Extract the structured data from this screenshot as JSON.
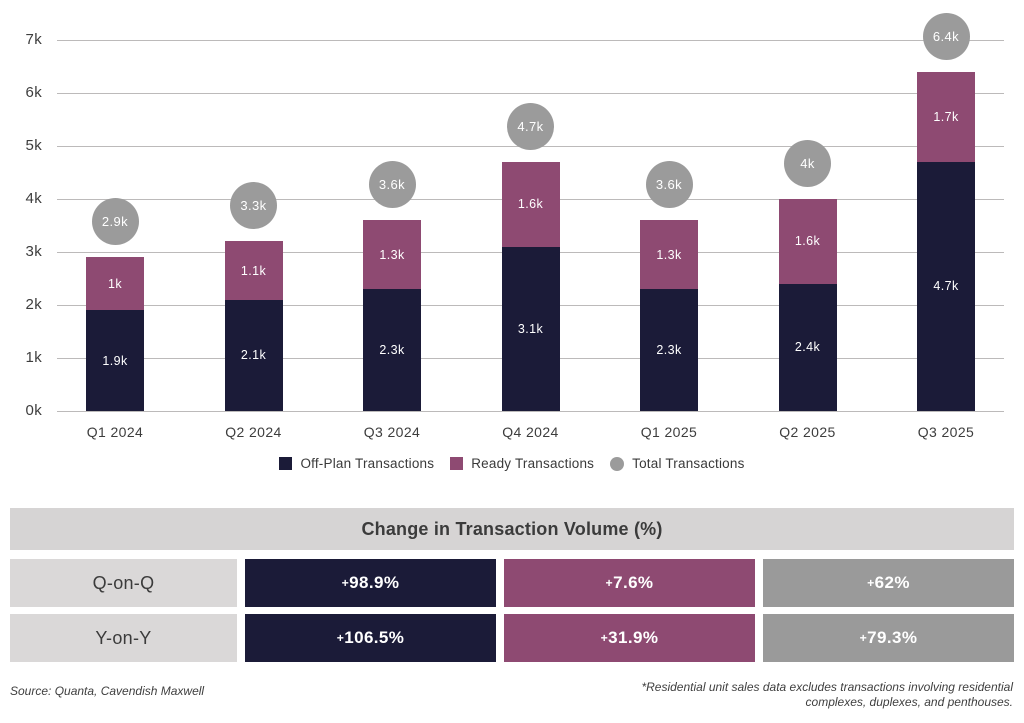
{
  "chart_data": {
    "type": "bar",
    "stacked": true,
    "title": "",
    "xlabel": "",
    "ylabel": "",
    "categories": [
      "Q1 2024",
      "Q2 2024",
      "Q3 2024",
      "Q4 2024",
      "Q1 2025",
      "Q2 2025",
      "Q3 2025"
    ],
    "series": [
      {
        "name": "Off-Plan Transactions",
        "color": "#1b1b38",
        "values": [
          1.9,
          2.1,
          2.3,
          3.1,
          2.3,
          2.4,
          4.7
        ],
        "labels": [
          "1.9k",
          "2.1k",
          "2.3k",
          "3.1k",
          "2.3k",
          "2.4k",
          "4.7k"
        ]
      },
      {
        "name": "Ready Transactions",
        "color": "#8e4a72",
        "values": [
          1.0,
          1.1,
          1.3,
          1.6,
          1.3,
          1.6,
          1.7
        ],
        "labels": [
          "1k",
          "1.1k",
          "1.3k",
          "1.6k",
          "1.3k",
          "1.6k",
          "1.7k"
        ]
      }
    ],
    "totals": {
      "name": "Total Transactions",
      "color": "#9b9b9b",
      "values": [
        2.9,
        3.3,
        3.6,
        4.7,
        3.6,
        4.0,
        6.4
      ],
      "labels": [
        "2.9k",
        "3.3k",
        "3.6k",
        "4.7k",
        "3.6k",
        "4k",
        "6.4k"
      ]
    },
    "y_axis": {
      "min": 0,
      "max": 7,
      "unit": "k",
      "ticks": [
        "0k",
        "1k",
        "2k",
        "3k",
        "4k",
        "5k",
        "6k",
        "7k"
      ]
    },
    "grid": true,
    "legend_position": "bottom"
  },
  "legend": [
    {
      "label": "Off-Plan Transactions",
      "marker": "square",
      "color": "#1b1b38"
    },
    {
      "label": "Ready Transactions",
      "marker": "square",
      "color": "#8e4a72"
    },
    {
      "label": "Total Transactions",
      "marker": "circle",
      "color": "#9b9b9b"
    }
  ],
  "table": {
    "title": "Change in Transaction Volume (%)",
    "rows": [
      {
        "label": "Q-on-Q",
        "cells": [
          {
            "value": "+98.9%",
            "color": "#1b1b38"
          },
          {
            "value": "+7.6%",
            "color": "#8e4a72"
          },
          {
            "value": "+62%",
            "color": "#9a9a9a"
          }
        ]
      },
      {
        "label": "Y-on-Y",
        "cells": [
          {
            "value": "+106.5%",
            "color": "#1b1b38"
          },
          {
            "value": "+31.9%",
            "color": "#8e4a72"
          },
          {
            "value": "+79.3%",
            "color": "#9a9a9a"
          }
        ]
      }
    ]
  },
  "footer": {
    "source": "Source: Quanta, Cavendish Maxwell",
    "footnote_line1": "*Residential unit sales data excludes transactions involving residential",
    "footnote_line2": "complexes, duplexes, and penthouses."
  }
}
